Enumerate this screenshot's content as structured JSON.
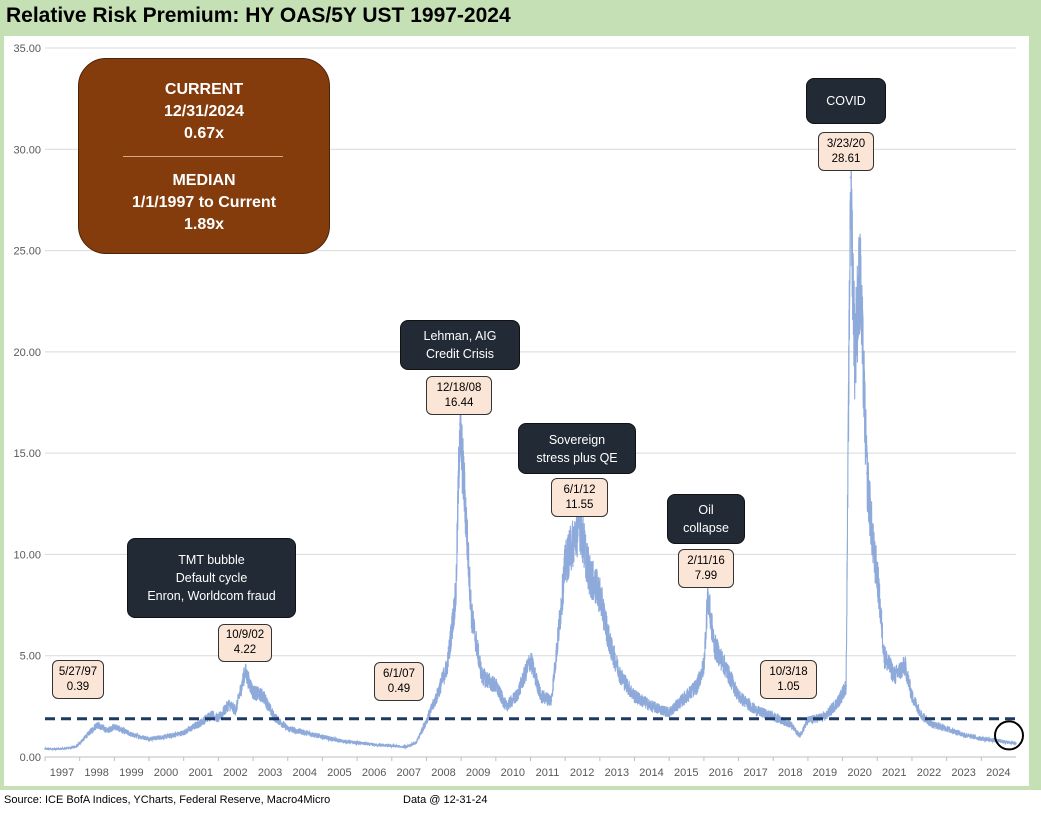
{
  "title": "Relative Risk Premium: HY OAS/5Y UST 1997-2024",
  "footer": {
    "source": "Source: ICE BofA Indices, YCharts, Federal Reserve, Macro4Micro",
    "data_as_of": "Data @ 12-31-24"
  },
  "summary_box": {
    "current_label": "CURRENT",
    "current_date": "12/31/2024",
    "current_value": "0.67x",
    "median_label": "MEDIAN",
    "median_range": "1/1/1997 to Current",
    "median_value": "1.89x"
  },
  "callouts": [
    {
      "id": "tmt",
      "lines": [
        "TMT bubble",
        "Default cycle",
        "Enron, Worldcom fraud"
      ]
    },
    {
      "id": "lehman",
      "lines": [
        "Lehman, AIG",
        "Credit Crisis"
      ]
    },
    {
      "id": "sovereign",
      "lines": [
        "Sovereign",
        "stress plus QE"
      ]
    },
    {
      "id": "oil",
      "lines": [
        "Oil",
        "collapse"
      ]
    },
    {
      "id": "covid",
      "lines": [
        "COVID"
      ]
    }
  ],
  "value_labels": [
    {
      "id": "v1997",
      "date": "5/27/97",
      "value": "0.39"
    },
    {
      "id": "v2002",
      "date": "10/9/02",
      "value": "4.22"
    },
    {
      "id": "v2007",
      "date": "6/1/07",
      "value": "0.49"
    },
    {
      "id": "v2008",
      "date": "12/18/08",
      "value": "16.44"
    },
    {
      "id": "v2012",
      "date": "6/1/12",
      "value": "11.55"
    },
    {
      "id": "v2016",
      "date": "2/11/16",
      "value": "7.99"
    },
    {
      "id": "v2018",
      "date": "10/3/18",
      "value": "1.05"
    },
    {
      "id": "v2020",
      "date": "3/23/20",
      "value": "28.61"
    }
  ],
  "colors": {
    "series": "#8eaadb",
    "median_line": "#1f3864",
    "frame": "#c5e0b4",
    "summary_box": "#843c0c",
    "callout": "#222a35",
    "value_label": "#fbe5d6"
  },
  "chart_data": {
    "type": "line",
    "title": "Relative Risk Premium: HY OAS/5Y UST 1997-2024",
    "ylim": [
      0,
      35
    ],
    "yticks": [
      "0.00",
      "5.00",
      "10.00",
      "15.00",
      "20.00",
      "25.00",
      "30.00",
      "35.00"
    ],
    "xticks": [
      "1997",
      "1998",
      "1999",
      "2000",
      "2001",
      "2002",
      "2003",
      "2004",
      "2005",
      "2006",
      "2007",
      "2008",
      "2009",
      "2010",
      "2011",
      "2012",
      "2013",
      "2014",
      "2015",
      "2016",
      "2017",
      "2018",
      "2019",
      "2020",
      "2021",
      "2022",
      "2023",
      "2024"
    ],
    "grid": "horizontal",
    "legend": "none",
    "series": [
      {
        "x": [
          1997.0,
          1997.4,
          1997.9,
          1998.5,
          1998.8,
          1999.0,
          1999.5,
          2000.0,
          2000.5,
          2001.0,
          2001.5,
          2001.8,
          2002.0,
          2002.3,
          2002.5,
          2002.77,
          2003.0,
          2003.3,
          2003.6,
          2004.0,
          2004.5,
          2005.0,
          2005.5,
          2006.0,
          2006.5,
          2007.0,
          2007.42,
          2007.7,
          2008.0,
          2008.3,
          2008.6,
          2008.85,
          2008.96,
          2009.1,
          2009.3,
          2009.6,
          2010.0,
          2010.3,
          2010.6,
          2011.0,
          2011.3,
          2011.6,
          2011.8,
          2012.0,
          2012.42,
          2012.7,
          2013.0,
          2013.3,
          2013.6,
          2014.0,
          2014.5,
          2015.0,
          2015.5,
          2015.8,
          2016.0,
          2016.11,
          2016.3,
          2016.6,
          2017.0,
          2017.5,
          2018.0,
          2018.5,
          2018.76,
          2019.0,
          2019.5,
          2019.9,
          2020.1,
          2020.23,
          2020.35,
          2020.5,
          2020.7,
          2020.9,
          2021.0,
          2021.2,
          2021.5,
          2021.8,
          2022.0,
          2022.3,
          2022.6,
          2023.0,
          2023.5,
          2024.0,
          2024.5,
          2024.8,
          2024.996
        ],
        "y": [
          0.4,
          0.39,
          0.5,
          1.6,
          1.3,
          1.5,
          1.1,
          0.9,
          1.0,
          1.2,
          1.7,
          2.1,
          1.9,
          2.6,
          2.3,
          4.22,
          3.2,
          3.0,
          2.0,
          1.4,
          1.2,
          1.0,
          0.8,
          0.7,
          0.6,
          0.55,
          0.49,
          0.7,
          1.8,
          3.0,
          4.5,
          8.0,
          16.44,
          13.0,
          7.0,
          4.0,
          3.5,
          2.5,
          3.0,
          4.8,
          3.0,
          2.8,
          6.0,
          9.5,
          11.55,
          9.0,
          8.0,
          5.5,
          4.0,
          3.0,
          2.5,
          2.2,
          3.0,
          3.5,
          4.5,
          7.99,
          5.5,
          4.5,
          3.0,
          2.3,
          2.0,
          1.6,
          1.05,
          1.8,
          2.0,
          2.8,
          3.5,
          28.61,
          20.0,
          24.0,
          14.0,
          10.0,
          9.0,
          5.0,
          4.0,
          4.5,
          3.0,
          2.0,
          1.6,
          1.4,
          1.1,
          0.9,
          0.8,
          0.72,
          0.67
        ]
      }
    ],
    "median": 1.89
  }
}
